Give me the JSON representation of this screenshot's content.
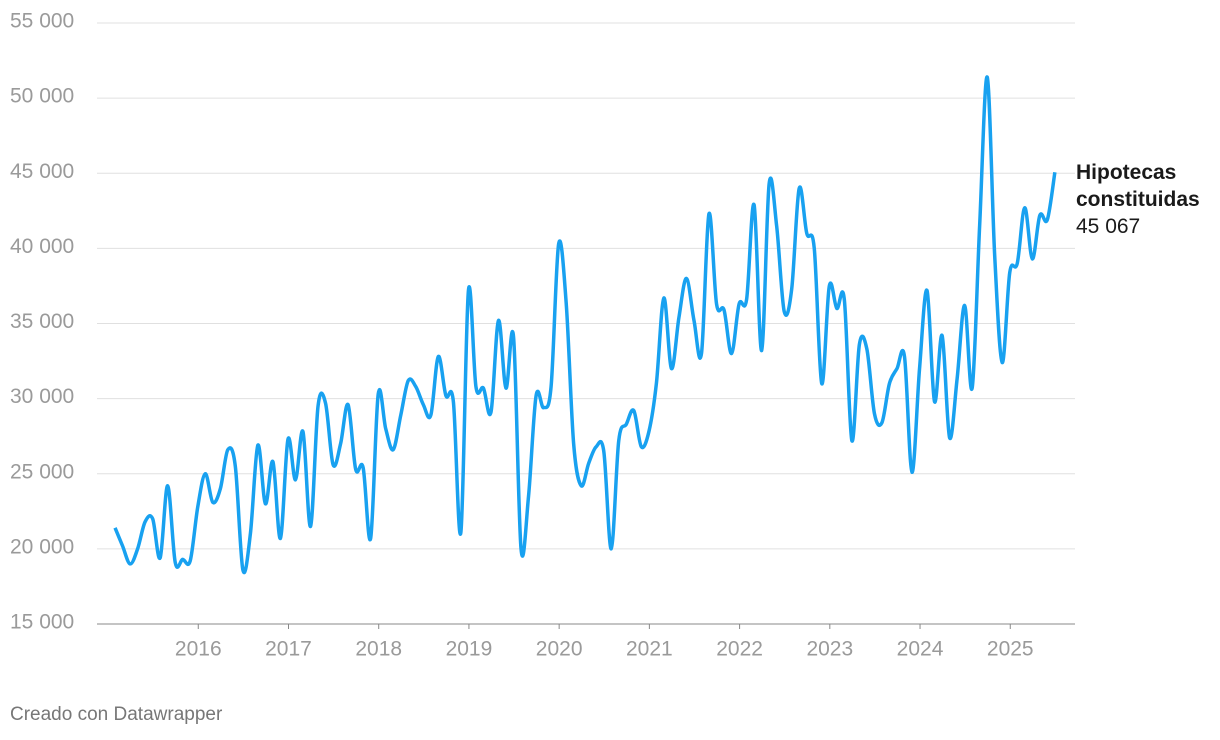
{
  "chart_data": {
    "type": "line",
    "x": [
      2015,
      2015.083,
      2015.167,
      2015.25,
      2015.333,
      2015.417,
      2015.5,
      2015.583,
      2015.667,
      2015.75,
      2015.833,
      2015.917,
      2016,
      2016.083,
      2016.167,
      2016.25,
      2016.333,
      2016.417,
      2016.5,
      2016.583,
      2016.667,
      2016.75,
      2016.833,
      2016.917,
      2017,
      2017.083,
      2017.167,
      2017.25,
      2017.333,
      2017.417,
      2017.5,
      2017.583,
      2017.667,
      2017.75,
      2017.833,
      2017.917,
      2018,
      2018.083,
      2018.167,
      2018.25,
      2018.333,
      2018.417,
      2018.5,
      2018.583,
      2018.667,
      2018.75,
      2018.833,
      2018.917,
      2019,
      2019.083,
      2019.167,
      2019.25,
      2019.333,
      2019.417,
      2019.5,
      2019.583,
      2019.667,
      2019.75,
      2019.833,
      2019.917,
      2020,
      2020.083,
      2020.167,
      2020.25,
      2020.333,
      2020.417,
      2020.5,
      2020.583,
      2020.667,
      2020.75,
      2020.833,
      2020.917,
      2021,
      2021.083,
      2021.167,
      2021.25,
      2021.333,
      2021.417,
      2021.5,
      2021.583,
      2021.667,
      2021.75,
      2021.833,
      2021.917,
      2022,
      2022.083,
      2022.167,
      2022.25,
      2022.333,
      2022.417,
      2022.5,
      2022.583,
      2022.667,
      2022.75,
      2022.833,
      2022.917,
      2023,
      2023.083,
      2023.167,
      2023.25,
      2023.333,
      2023.417,
      2023.5,
      2023.583,
      2023.667,
      2023.75,
      2023.833,
      2023.917,
      2024,
      2024.083,
      2024.167,
      2024.25,
      2024.333,
      2024.417,
      2024.5,
      2024.583,
      2024.667,
      2024.75,
      2024.833,
      2024.917,
      2025,
      2025.083,
      2025.167,
      2025.25,
      2025.333,
      2025.417
    ],
    "series": [
      {
        "name": "Hipotecas constituidas",
        "color": "#18a1f0",
        "values": [
          21400,
          20200,
          19000,
          20000,
          21800,
          22000,
          19400,
          24200,
          19100,
          19300,
          19200,
          22800,
          25000,
          23100,
          24000,
          26600,
          25500,
          18600,
          21000,
          26900,
          23000,
          25800,
          20700,
          27300,
          24600,
          27800,
          21500,
          29500,
          29700,
          25600,
          27000,
          29600,
          25300,
          25400,
          20700,
          30300,
          28000,
          26600,
          28900,
          31200,
          30800,
          29600,
          28900,
          32800,
          30200,
          29800,
          21100,
          37200,
          30800,
          30700,
          29100,
          35200,
          30700,
          34100,
          20000,
          23500,
          30200,
          29400,
          30800,
          40300,
          36400,
          27000,
          24200,
          25700,
          26800,
          26500,
          20000,
          27200,
          28300,
          29200,
          26800,
          27800,
          31000,
          36700,
          32000,
          35400,
          38000,
          35200,
          33000,
          42300,
          36300,
          35900,
          33000,
          36300,
          36600,
          42900,
          33200,
          44300,
          41500,
          35800,
          37300,
          44000,
          41000,
          40000,
          31000,
          37500,
          36000,
          36600,
          27200,
          33600,
          33300,
          29000,
          28400,
          31000,
          32000,
          32800,
          25100,
          32000,
          37200,
          29800,
          34200,
          27400,
          31300,
          36200,
          30700,
          41500,
          51400,
          39500,
          32400,
          38400,
          39000,
          42700,
          39300,
          42200,
          41900,
          45067
        ],
        "last_value_label": "45 067"
      }
    ],
    "xlim": [
      2014.8,
      2025.64
    ],
    "xticks": [
      2016,
      2017,
      2018,
      2019,
      2020,
      2021,
      2022,
      2023,
      2024,
      2025
    ],
    "ylim": [
      15000,
      55000
    ],
    "yticks": [
      {
        "value": 15000,
        "label": "15 000"
      },
      {
        "value": 20000,
        "label": "20 000"
      },
      {
        "value": 25000,
        "label": "25 000"
      },
      {
        "value": 30000,
        "label": "30 000"
      },
      {
        "value": 35000,
        "label": "35 000"
      },
      {
        "value": 40000,
        "label": "40 000"
      },
      {
        "value": 45000,
        "label": "45 000"
      },
      {
        "value": 50000,
        "label": "50 000"
      },
      {
        "value": 55000,
        "label": "55 000"
      }
    ],
    "grid": true,
    "source": "Creado con Datawrapper"
  }
}
